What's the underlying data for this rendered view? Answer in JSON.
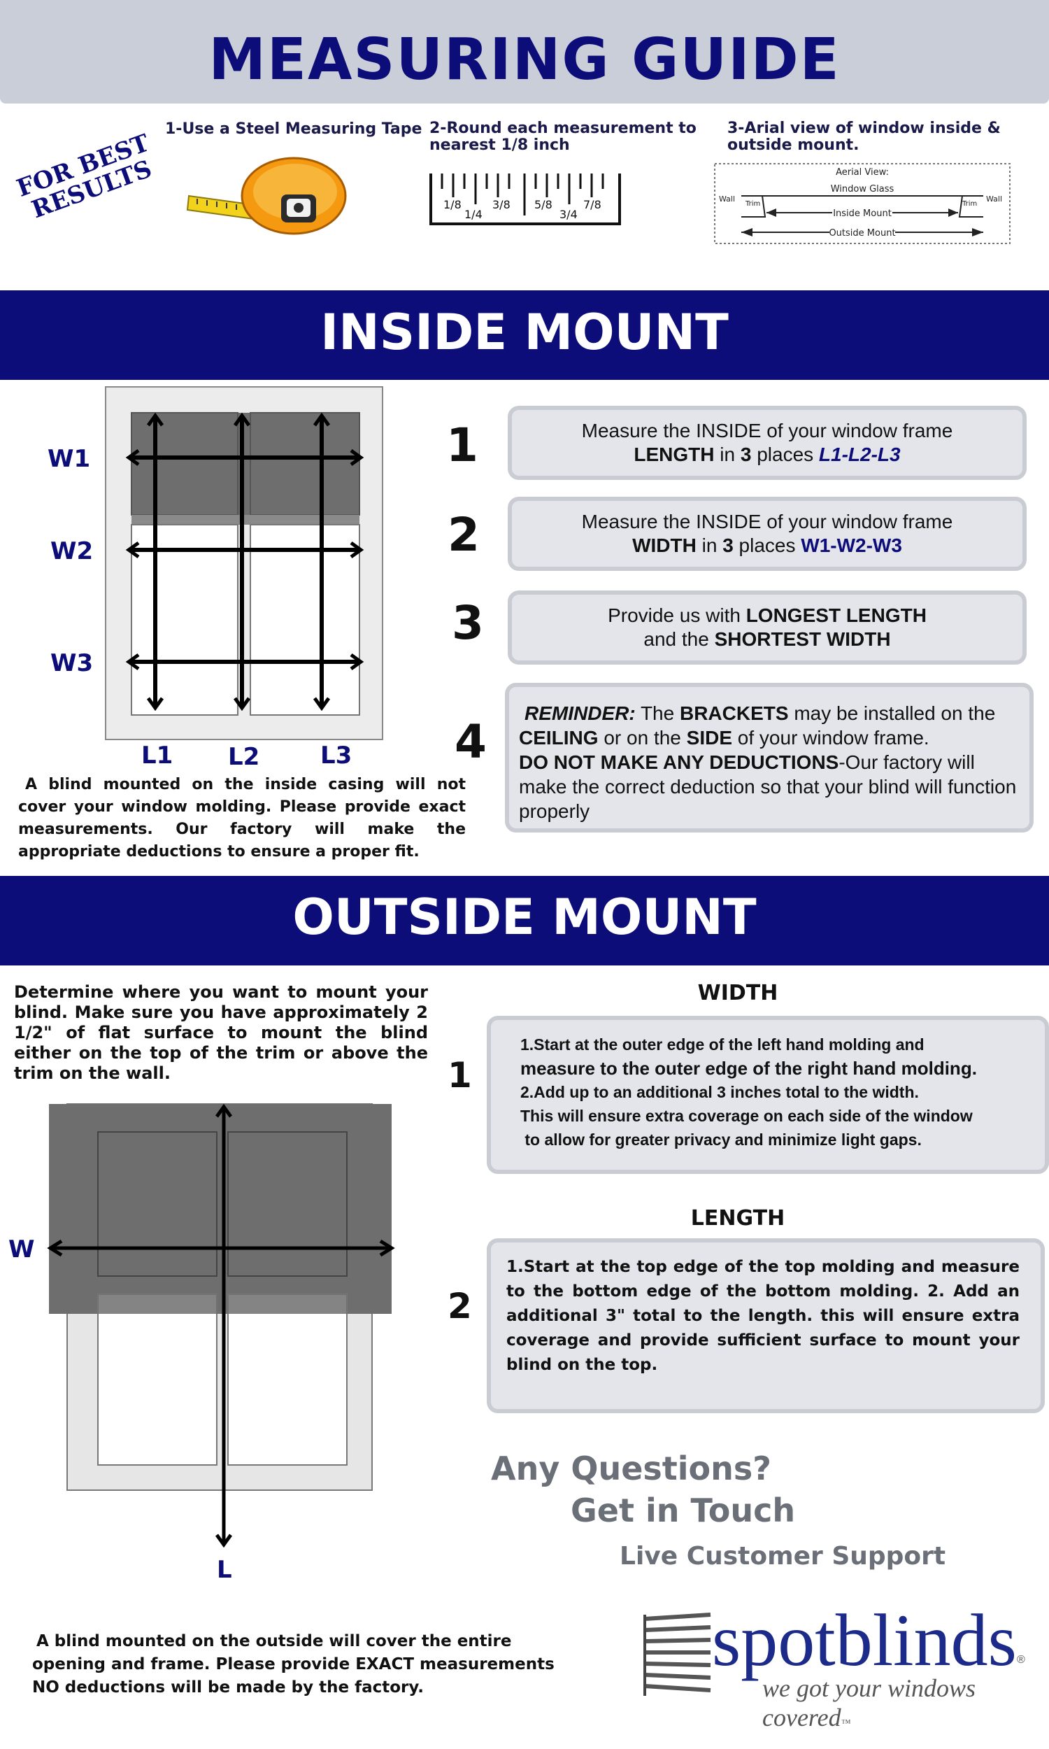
{
  "title": "MEASURING GUIDE",
  "tips": {
    "badge": [
      "FOR BEST",
      "RESULTS"
    ],
    "tip1": "1-Use a Steel Measuring Tape",
    "tip2": [
      "2-Round each measurement to",
      "nearest 1/8 inch"
    ],
    "tip3": [
      "3-Arial view of window inside &",
      "outside mount."
    ],
    "ruler_top": [
      "1/8",
      "3/8",
      "5/8",
      "7/8"
    ],
    "ruler_bottom": [
      "1/4",
      "3/4"
    ],
    "aerial": {
      "title": "Aerial View:",
      "glass": "Window Glass",
      "wall": "Wall",
      "trim": "Trim",
      "inside": "Inside Mount",
      "outside": "Outside Mount"
    }
  },
  "inside": {
    "heading": "INSIDE MOUNT",
    "labels": {
      "w1": "W1",
      "w2": "W2",
      "w3": "W3",
      "l1": "L1",
      "l2": "L2",
      "l3": "L3"
    },
    "note": "A blind mounted on the inside casing will not cover your window molding. Please provide exact measurements. Our factory will make the appropriate deductions to ensure a proper fit.",
    "steps": [
      {
        "num": "1",
        "line1": "Measure the INSIDE of your window frame",
        "a": "LENGTH",
        "b": " in ",
        "c": "3",
        "d": " places ",
        "e": "L1-L2-L3"
      },
      {
        "num": "2",
        "line1": "Measure the INSIDE of your window frame",
        "a": "WIDTH",
        "b": " in ",
        "c": "3",
        "d": " places ",
        "e": "W1-W2-W3"
      },
      {
        "num": "3",
        "p1": "Provide us with ",
        "p2": "LONGEST LENGTH",
        "p3": "and the ",
        "p4": "SHORTEST WIDTH"
      },
      {
        "num": "4",
        "r1": "REMINDER:",
        "r2": " The ",
        "r3": "BRACKETS",
        "r4": " may be installed on the ",
        "r5": "CEILING",
        "r6": " or on the ",
        "r7": "SIDE",
        "r8": " of your window frame.",
        "r9": "DO NOT MAKE ANY DEDUCTIONS",
        "r10": "-Our factory will make the correct deduction so that your blind will function properly"
      }
    ]
  },
  "outside": {
    "heading": "OUTSIDE MOUNT",
    "intro": "Determine where you want to mount your blind.  Make sure you have approximately 2 1/2\" of flat surface to mount the blind either on the top of the trim or above the trim on the wall.",
    "labels": {
      "w": "W",
      "l": "L"
    },
    "width_title": "WIDTH",
    "width_num": "1",
    "width_lines": [
      "1.Start at the outer edge of the left hand molding and",
      "measure to the outer edge of the right hand molding.",
      "2.Add up to an additional 3 inches total to the width.",
      "This will ensure extra coverage on each side of the window",
      " to allow for greater privacy and minimize light gaps."
    ],
    "length_title": "LENGTH",
    "length_num": "2",
    "length_text": "1.Start at the top edge of the top molding and measure to the bottom edge of the bottom molding. 2. Add an additional 3\" total to the length. this will ensure extra coverage and provide sufficient surface to mount your blind on the top.",
    "note": [
      "A blind mounted on the outside will cover the entire",
      "opening and frame. Please provide EXACT measurements",
      "NO deductions will be made by the factory."
    ]
  },
  "contact": {
    "line1": "Any Questions?",
    "line2": "Get in Touch",
    "line3": "Live Customer Support"
  },
  "brand": {
    "name": "spotblinds",
    "tagline": "we got your windows covered",
    "reg": "®",
    "tm": "™"
  },
  "colors": {
    "navy": "#0d0d7a",
    "header_gray": "#c9ced8",
    "box_fill": "#e3e5ea",
    "box_border": "#c9ccd3",
    "shade": "#6e6e6e",
    "contact_gray": "#6b6f78"
  }
}
